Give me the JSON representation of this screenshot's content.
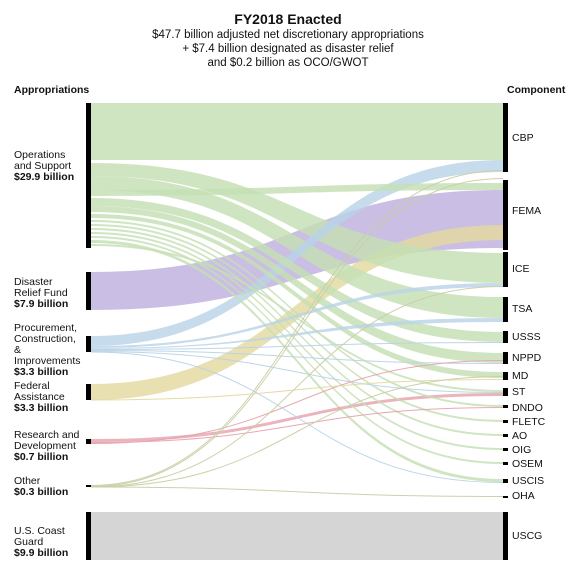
{
  "title": "FY2018 Enacted",
  "subtitle_lines": [
    "$47.7 billion adjusted net discretionary appropriations",
    "+ $7.4 billion designated as disaster relief",
    "and $0.2 billion as OCO/GWOT"
  ],
  "left_header": "Appropriations",
  "right_header": "Component",
  "sources": [
    {
      "name": "Operations and Support",
      "lines": [
        "Operations",
        "and Support"
      ],
      "amount": "$29.9 billion",
      "color": "#c5dfb5"
    },
    {
      "name": "Disaster Relief Fund",
      "lines": [
        "Disaster",
        "Relief Fund"
      ],
      "amount": "$7.9 billion",
      "color": "#bfb0de"
    },
    {
      "name": "Procurement, Construction, & Improvements",
      "lines": [
        "Procurement,",
        "Construction, &",
        "Improvements"
      ],
      "amount": "$3.3 billion",
      "color": "#b9d3e6"
    },
    {
      "name": "Federal Assistance",
      "lines": [
        "Federal",
        "Assistance"
      ],
      "amount": "$3.3 billion",
      "color": "#e3d9a0"
    },
    {
      "name": "Research and Development",
      "lines": [
        "Research and",
        "Development"
      ],
      "amount": "$0.7 billion",
      "color": "#e7a3ad"
    },
    {
      "name": "Other",
      "lines": [
        "Other"
      ],
      "amount": "$0.3 billion",
      "color": "#c9cfa7"
    },
    {
      "name": "U.S. Coast Guard",
      "lines": [
        "U.S. Coast",
        "Guard"
      ],
      "amount": "$9.9 billion",
      "color": "#cccccc"
    }
  ],
  "components": [
    "CBP",
    "FEMA",
    "ICE",
    "TSA",
    "USSS",
    "NPPD",
    "MD",
    "ST",
    "DNDO",
    "FLETC",
    "AO",
    "OIG",
    "OSEM",
    "USCIS",
    "OHA",
    "USCG"
  ]
}
